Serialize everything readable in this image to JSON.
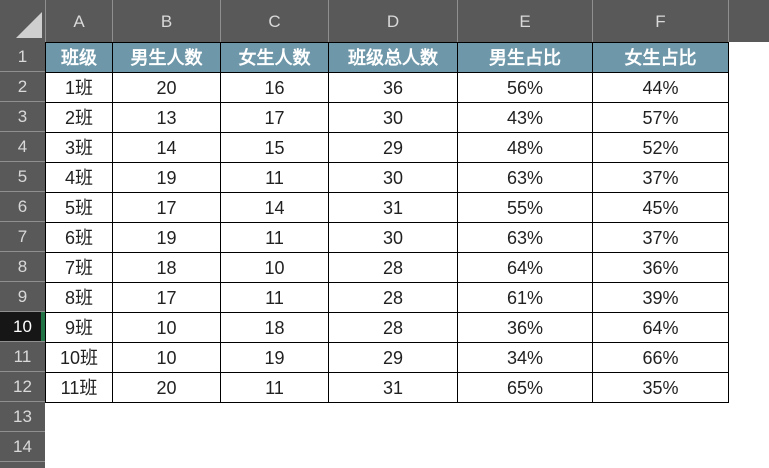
{
  "colors": {
    "chrome": "#595959",
    "header_fill": "#6E98A9",
    "active_row_bg": "#161616",
    "accent_green": "#217346",
    "cell_border": "#000000"
  },
  "column_headers": [
    "A",
    "B",
    "C",
    "D",
    "E",
    "F"
  ],
  "row_headers": [
    "1",
    "2",
    "3",
    "4",
    "5",
    "6",
    "7",
    "8",
    "9",
    "10",
    "11",
    "12",
    "13",
    "14"
  ],
  "active_row": "10",
  "sheet": {
    "header_row": [
      "班级",
      "男生人数",
      "女生人数",
      "班级总人数",
      "男生占比",
      "女生占比"
    ],
    "rows": [
      [
        "1班",
        "20",
        "16",
        "36",
        "56%",
        "44%"
      ],
      [
        "2班",
        "13",
        "17",
        "30",
        "43%",
        "57%"
      ],
      [
        "3班",
        "14",
        "15",
        "29",
        "48%",
        "52%"
      ],
      [
        "4班",
        "19",
        "11",
        "30",
        "63%",
        "37%"
      ],
      [
        "5班",
        "17",
        "14",
        "31",
        "55%",
        "45%"
      ],
      [
        "6班",
        "19",
        "11",
        "30",
        "63%",
        "37%"
      ],
      [
        "7班",
        "18",
        "10",
        "28",
        "64%",
        "36%"
      ],
      [
        "8班",
        "17",
        "11",
        "28",
        "61%",
        "39%"
      ],
      [
        "9班",
        "10",
        "18",
        "28",
        "36%",
        "64%"
      ],
      [
        "10班",
        "10",
        "19",
        "29",
        "34%",
        "66%"
      ],
      [
        "11班",
        "20",
        "11",
        "31",
        "65%",
        "35%"
      ]
    ]
  }
}
